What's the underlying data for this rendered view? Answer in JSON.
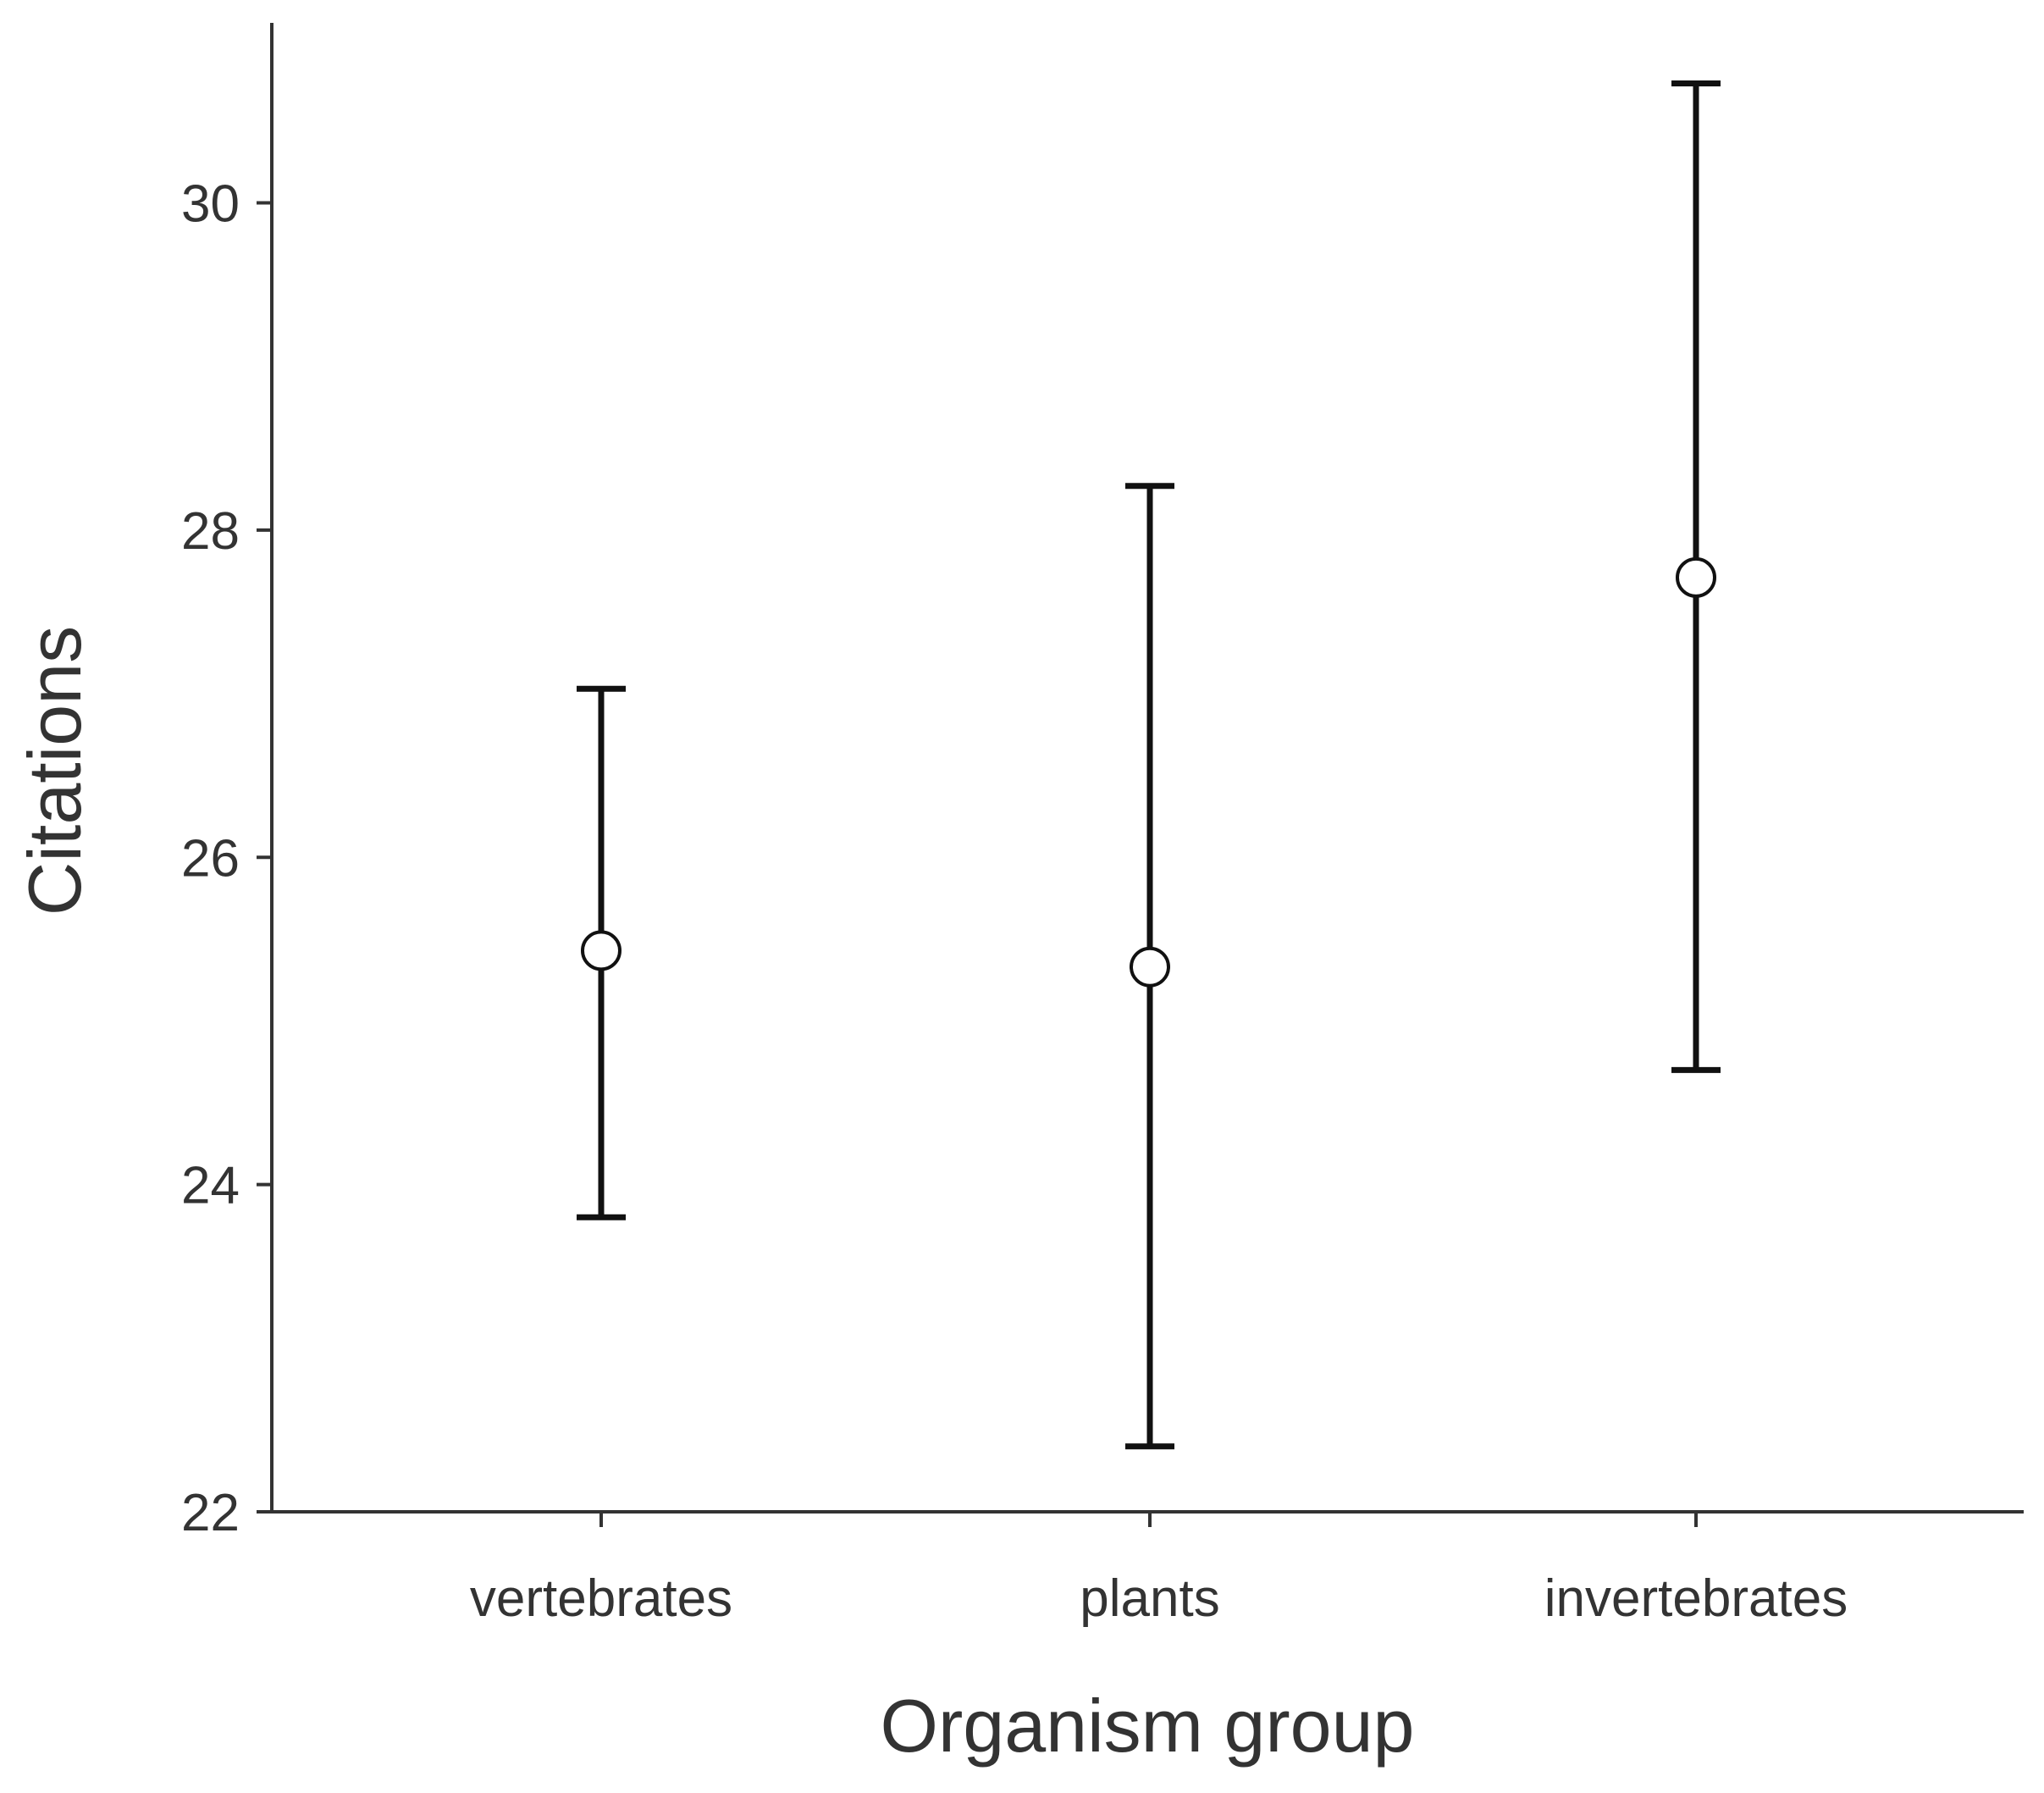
{
  "chart_data": {
    "type": "scatter",
    "categories": [
      "vertebrates",
      "plants",
      "invertebrates"
    ],
    "series": [
      {
        "values": [
          25.43,
          25.33,
          27.71
        ],
        "lower": [
          23.8,
          22.4,
          24.7
        ],
        "upper": [
          27.03,
          28.27,
          30.73
        ]
      }
    ],
    "title": "",
    "xlabel": "Organism group",
    "ylabel": "Citations",
    "ylim": [
      22,
      31.1
    ],
    "yticks": [
      "22",
      "24",
      "26",
      "28",
      "30"
    ],
    "grid": false,
    "legend": "none",
    "colors": {
      "axis": "#333333",
      "errorbar": "#111111",
      "marker_fill": "#ffffff"
    }
  }
}
